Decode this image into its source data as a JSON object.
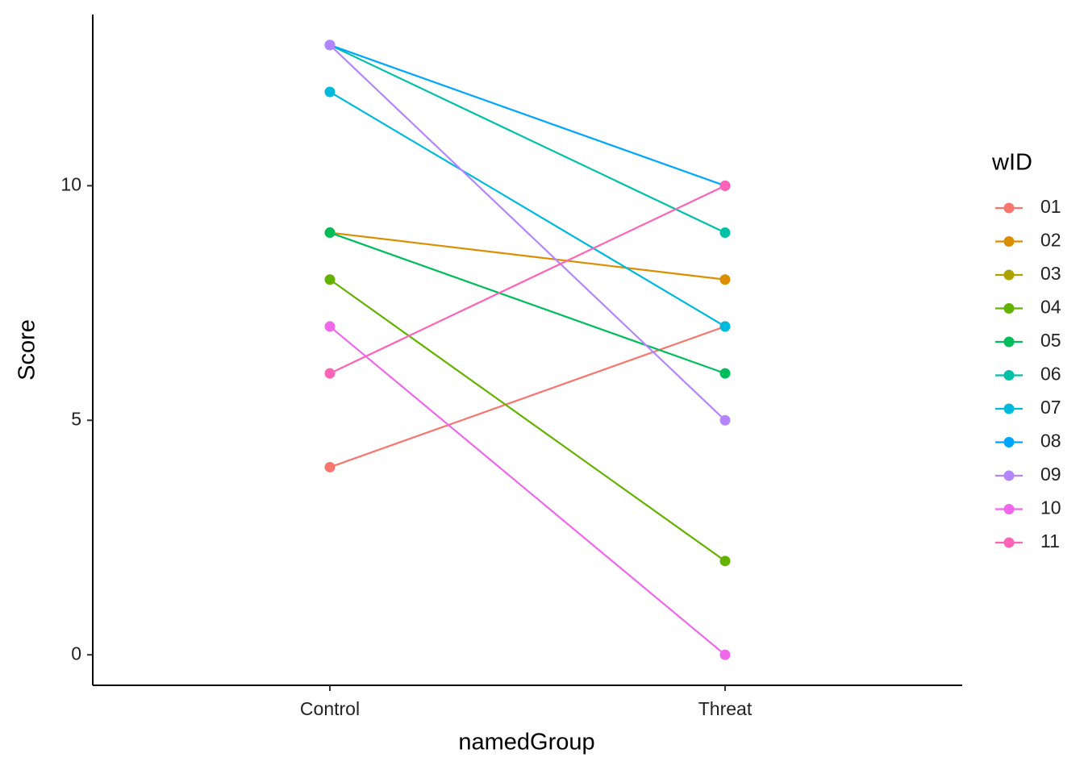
{
  "chart_data": {
    "type": "line",
    "x_label": "namedGroup",
    "y_label": "Score",
    "categories": [
      "Control",
      "Threat"
    ],
    "ylim": [
      -0.65,
      13.65
    ],
    "yticks": [
      0,
      5,
      10
    ],
    "xlim": [
      0.4,
      2.6
    ],
    "legend_title": "wID",
    "legend_position": "right",
    "series": [
      {
        "name": "01",
        "color": "#F8766D",
        "values": [
          4,
          7
        ]
      },
      {
        "name": "02",
        "color": "#DB8E00",
        "values": [
          9,
          8
        ]
      },
      {
        "name": "03",
        "color": "#AEA200",
        "values": [
          null,
          null
        ]
      },
      {
        "name": "04",
        "color": "#64B200",
        "values": [
          8,
          2
        ]
      },
      {
        "name": "05",
        "color": "#00BD5C",
        "values": [
          9,
          6
        ]
      },
      {
        "name": "06",
        "color": "#00C1A7",
        "values": [
          13,
          9
        ]
      },
      {
        "name": "07",
        "color": "#00BADE",
        "values": [
          12,
          7
        ]
      },
      {
        "name": "08",
        "color": "#00A6FF",
        "values": [
          13,
          10
        ]
      },
      {
        "name": "09",
        "color": "#B385FF",
        "values": [
          13,
          5
        ]
      },
      {
        "name": "10",
        "color": "#EF67EB",
        "values": [
          7,
          0
        ]
      },
      {
        "name": "11",
        "color": "#FF63B6",
        "values": [
          6,
          10
        ]
      }
    ]
  }
}
